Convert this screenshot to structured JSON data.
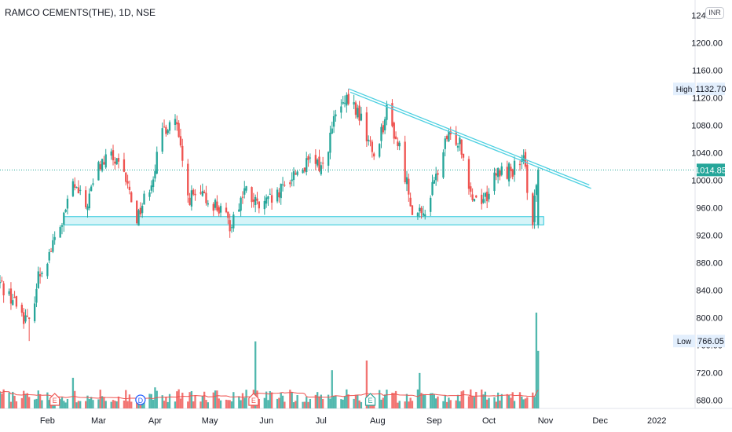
{
  "symbol": {
    "title": "RAMCO CEMENTS(THE), 1D, NSE",
    "currency": "INR"
  },
  "colors": {
    "up": "#26a69a",
    "down": "#ef5350",
    "ma_line": "#ef5350",
    "trendline": "#4dd0e1",
    "support_fill": "#b2ebf2",
    "support_border": "#26c6da",
    "last_price_line": "#26a69a",
    "axis_text": "#131722"
  },
  "chart_data": {
    "type": "candlestick",
    "y_axis": {
      "ticks": [
        680,
        720,
        760,
        800,
        840,
        880,
        920,
        960,
        1000,
        1040,
        1080,
        1120,
        1160,
        1200,
        1240
      ],
      "range": [
        668,
        1262
      ]
    },
    "x_axis": {
      "labels": [
        "Feb",
        "Mar",
        "Apr",
        "May",
        "Jun",
        "Jul",
        "Aug",
        "Sep",
        "Oct",
        "Nov",
        "Dec",
        "2022"
      ],
      "label_dates": [
        "2021-02-01",
        "2021-03-01",
        "2021-04-01",
        "2021-05-01",
        "2021-06-01",
        "2021-07-01",
        "2021-08-01",
        "2021-09-01",
        "2021-10-01",
        "2021-11-01",
        "2021-12-01",
        "2022-01-01"
      ],
      "range": [
        "2021-01-06",
        "2022-01-22"
      ]
    },
    "markers": {
      "high": {
        "label": "High",
        "value": 1132.7
      },
      "low": {
        "label": "Low",
        "value": 766.05
      },
      "last": {
        "value": 1014.85
      }
    },
    "anchors": [
      [
        "2021-01-06",
        850
      ],
      [
        "2021-01-15",
        820
      ],
      [
        "2021-01-22",
        790
      ],
      [
        "2021-01-27",
        860
      ],
      [
        "2021-02-03",
        900
      ],
      [
        "2021-02-10",
        945
      ],
      [
        "2021-02-15",
        995
      ],
      [
        "2021-02-22",
        960
      ],
      [
        "2021-03-01",
        1020
      ],
      [
        "2021-03-08",
        1035
      ],
      [
        "2021-03-16",
        1000
      ],
      [
        "2021-03-22",
        945
      ],
      [
        "2021-03-30",
        1000
      ],
      [
        "2021-04-06",
        1075
      ],
      [
        "2021-04-12",
        1090
      ],
      [
        "2021-04-19",
        975
      ],
      [
        "2021-04-26",
        975
      ],
      [
        "2021-05-04",
        965
      ],
      [
        "2021-05-12",
        935
      ],
      [
        "2021-05-20",
        985
      ],
      [
        "2021-05-28",
        960
      ],
      [
        "2021-06-07",
        975
      ],
      [
        "2021-06-16",
        1010
      ],
      [
        "2021-06-25",
        1025
      ],
      [
        "2021-07-02",
        1020
      ],
      [
        "2021-07-09",
        1095
      ],
      [
        "2021-07-16",
        1115
      ],
      [
        "2021-07-22",
        1095
      ],
      [
        "2021-07-30",
        1035
      ],
      [
        "2021-08-06",
        1100
      ],
      [
        "2021-08-13",
        1045
      ],
      [
        "2021-08-20",
        960
      ],
      [
        "2021-08-25",
        945
      ],
      [
        "2021-09-01",
        995
      ],
      [
        "2021-09-08",
        1060
      ],
      [
        "2021-09-15",
        1060
      ],
      [
        "2021-09-22",
        975
      ],
      [
        "2021-09-29",
        975
      ],
      [
        "2021-10-06",
        1010
      ],
      [
        "2021-10-13",
        1015
      ],
      [
        "2021-10-20",
        1025
      ],
      [
        "2021-10-25",
        945
      ],
      [
        "2021-10-28",
        1014.85
      ]
    ],
    "volume": {
      "tall_bars": [
        {
          "date": "2021-02-15",
          "height": 0.32
        },
        {
          "date": "2021-04-01",
          "height": 0.22
        },
        {
          "date": "2021-05-26",
          "height": 0.7
        },
        {
          "date": "2021-07-07",
          "height": 0.4
        },
        {
          "date": "2021-07-26",
          "height": 0.5
        },
        {
          "date": "2021-08-24",
          "height": 0.37
        },
        {
          "date": "2021-10-27",
          "height": 1.0
        },
        {
          "date": "2021-10-28",
          "height": 0.6
        }
      ]
    },
    "event_markers": [
      {
        "date": "2021-02-05",
        "label": "E"
      },
      {
        "date": "2021-03-24",
        "label": "D"
      },
      {
        "date": "2021-05-25",
        "label": "E"
      },
      {
        "date": "2021-07-28",
        "label": "E"
      }
    ],
    "trendlines": [
      {
        "from": [
          "2021-07-16",
          1133
        ],
        "to": [
          "2021-11-25",
          993
        ]
      },
      {
        "from": [
          "2021-07-17",
          1128
        ],
        "to": [
          "2021-11-26",
          988
        ]
      }
    ],
    "support_zone": {
      "from": "2021-02-10",
      "to": "2021-10-31",
      "low": 935,
      "high": 947
    }
  }
}
